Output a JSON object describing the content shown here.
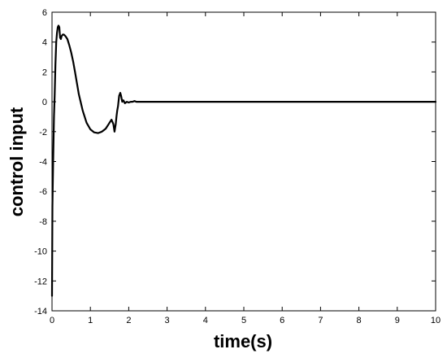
{
  "chart_data": {
    "type": "line",
    "title": "",
    "xlabel": "time(s)",
    "ylabel": "control input",
    "xlim": [
      0,
      10
    ],
    "ylim": [
      -14,
      6
    ],
    "xticks": [
      0,
      1,
      2,
      3,
      4,
      5,
      6,
      7,
      8,
      9,
      10
    ],
    "yticks": [
      -14,
      -12,
      -10,
      -8,
      -6,
      -4,
      -2,
      0,
      2,
      4,
      6
    ],
    "grid": false,
    "legend": "none",
    "line_color": "#000000",
    "series": [
      {
        "x": [
          0,
          0.01,
          0.03,
          0.05,
          0.07,
          0.09,
          0.11,
          0.13,
          0.15,
          0.17,
          0.19,
          0.21,
          0.23,
          0.25,
          0.28,
          0.31,
          0.35,
          0.4,
          0.45,
          0.5,
          0.55,
          0.6,
          0.7,
          0.8,
          0.9,
          1.0,
          1.1,
          1.2,
          1.3,
          1.4,
          1.5,
          1.55,
          1.6,
          1.63,
          1.66,
          1.68,
          1.7,
          1.72,
          1.75,
          1.78,
          1.8,
          1.83,
          1.86,
          1.9,
          1.95,
          2.0,
          2.05,
          2.1,
          2.15,
          2.2,
          2.5,
          3,
          4,
          5,
          6,
          7,
          8,
          9,
          10
        ],
        "y": [
          -13,
          -7,
          -4,
          -1,
          0.5,
          2.5,
          4.0,
          4.6,
          5.0,
          5.1,
          5.0,
          4.3,
          4.2,
          4.4,
          4.5,
          4.5,
          4.4,
          4.2,
          3.8,
          3.3,
          2.7,
          2.0,
          0.5,
          -0.6,
          -1.4,
          -1.85,
          -2.05,
          -2.1,
          -2.0,
          -1.8,
          -1.4,
          -1.2,
          -1.5,
          -2.0,
          -1.5,
          -1.0,
          -0.6,
          -0.3,
          0.4,
          0.6,
          0.4,
          0.0,
          0.1,
          -0.1,
          0.0,
          -0.05,
          0.0,
          0.0,
          0.05,
          0.0,
          0.0,
          0.0,
          0.0,
          0.0,
          0.0,
          0.0,
          0.0,
          0.0,
          0.0
        ]
      }
    ]
  }
}
